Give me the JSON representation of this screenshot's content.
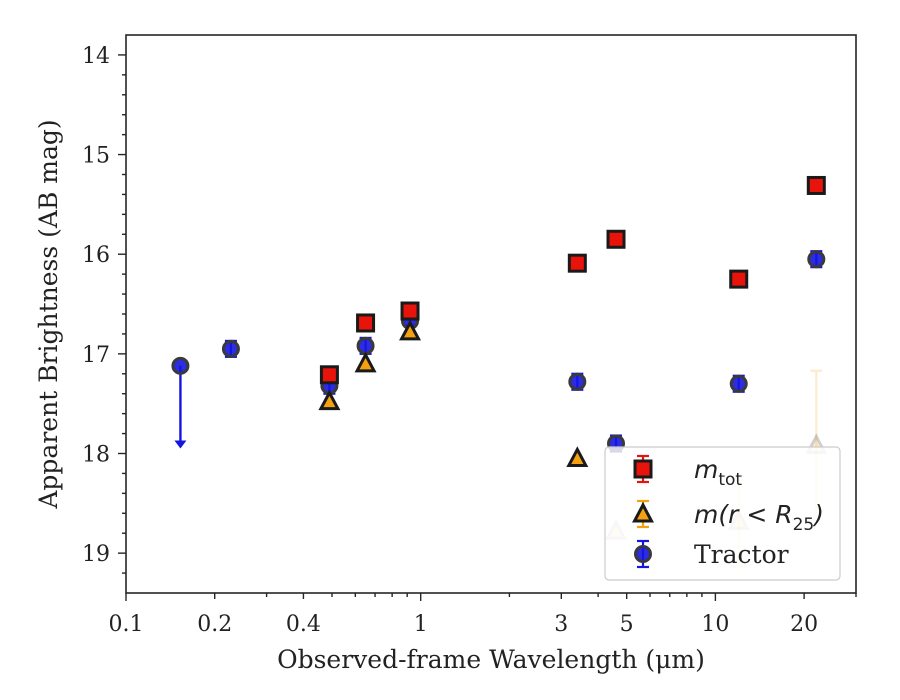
{
  "chart_data": {
    "type": "scatter",
    "xlabel": "Observed-frame Wavelength (μm)",
    "ylabel": "Apparent Brightness (AB mag)",
    "xscale": "log",
    "xlim": [
      0.1,
      30
    ],
    "ylim": [
      19.4,
      13.8
    ],
    "y_inverted": true,
    "grid": false,
    "legend_position": "bottom-right",
    "x_ticks": [
      0.1,
      0.2,
      0.4,
      1,
      3,
      5,
      10,
      20
    ],
    "x_tick_labels": [
      "0.1",
      "0.2",
      "0.4",
      "1",
      "3",
      "5",
      "10",
      "20"
    ],
    "y_ticks": [
      14,
      15,
      16,
      17,
      18,
      19
    ],
    "y_tick_labels": [
      "14",
      "15",
      "16",
      "17",
      "18",
      "19"
    ],
    "series": [
      {
        "name": "m_tot",
        "legend_label_main": "m",
        "legend_label_sub": "tot",
        "marker": "square",
        "face": "#e8140c",
        "edge": "#1a1a1a",
        "errcolor": "#e8140c",
        "points": [
          {
            "x": 0.49,
            "y": 17.21,
            "err": 0.08
          },
          {
            "x": 0.65,
            "y": 16.69,
            "err": 0.08
          },
          {
            "x": 0.92,
            "y": 16.57,
            "err": 0.08
          },
          {
            "x": 3.4,
            "y": 16.09,
            "err": 0.08
          },
          {
            "x": 4.6,
            "y": 15.85,
            "err": 0.08
          },
          {
            "x": 12.0,
            "y": 16.25,
            "err": 0.08
          },
          {
            "x": 22.0,
            "y": 15.31,
            "err": 0.08
          }
        ]
      },
      {
        "name": "m(r < R_25)",
        "legend_label_main": "m(r < R",
        "legend_label_sub": "25",
        "legend_label_end": ")",
        "marker": "triangle",
        "face": "#f5a010",
        "edge": "#1a1a1a",
        "errcolor": "#f5a010",
        "points": [
          {
            "x": 0.49,
            "y": 17.48,
            "err": 0
          },
          {
            "x": 0.65,
            "y": 17.1,
            "err": 0
          },
          {
            "x": 0.92,
            "y": 16.78,
            "err": 0
          },
          {
            "x": 3.4,
            "y": 18.05,
            "err": 0
          },
          {
            "x": 4.6,
            "y": 18.78,
            "err": 0,
            "faded": true
          },
          {
            "x": 12.0,
            "y": 18.68,
            "err": 0.45,
            "faded": true
          },
          {
            "x": 22.0,
            "y": 17.92,
            "err": 0.75,
            "faded": true
          }
        ]
      },
      {
        "name": "Tractor",
        "legend_label_main": "Tractor",
        "marker": "circle",
        "face": "#1515e0",
        "edge": "#3a3a3a",
        "errcolor": "#1515e0",
        "points": [
          {
            "x": 0.153,
            "y": 17.12,
            "err": 0,
            "upper_limit": true,
            "limit_to": 17.95
          },
          {
            "x": 0.227,
            "y": 16.95,
            "err": 0.08
          },
          {
            "x": 0.49,
            "y": 17.32,
            "err": 0.08
          },
          {
            "x": 0.65,
            "y": 16.92,
            "err": 0.08
          },
          {
            "x": 0.92,
            "y": 16.67,
            "err": 0.05
          },
          {
            "x": 3.4,
            "y": 17.28,
            "err": 0.08
          },
          {
            "x": 4.6,
            "y": 17.9,
            "err": 0.08
          },
          {
            "x": 12.0,
            "y": 17.3,
            "err": 0.08
          },
          {
            "x": 22.0,
            "y": 16.05,
            "err": 0.08
          }
        ]
      }
    ]
  }
}
